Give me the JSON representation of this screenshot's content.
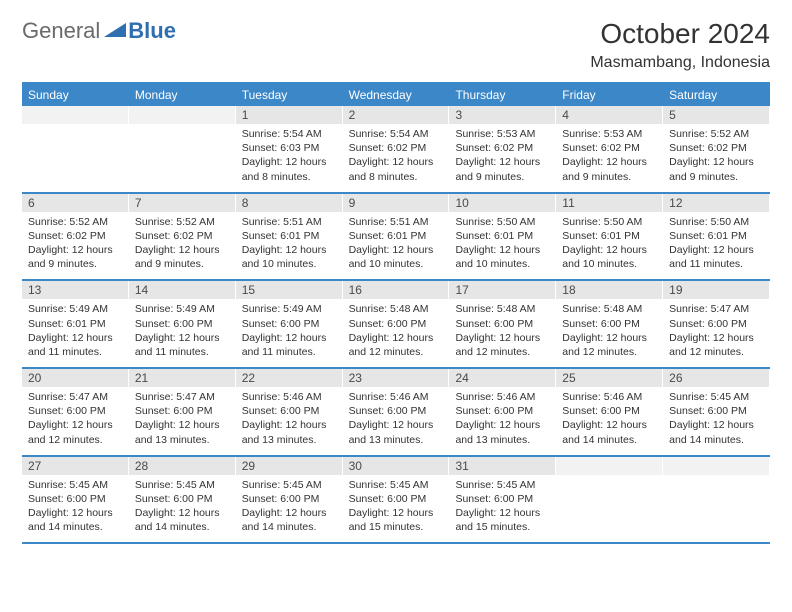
{
  "colors": {
    "header": "#3b87c8",
    "num_bg": "#e6e6e6",
    "text": "#333333"
  },
  "logo": {
    "part1": "General",
    "part2": "Blue"
  },
  "title": "October 2024",
  "location": "Masmambang, Indonesia",
  "weekdays": [
    "Sunday",
    "Monday",
    "Tuesday",
    "Wednesday",
    "Thursday",
    "Friday",
    "Saturday"
  ],
  "font": {
    "title_size": 28,
    "location_size": 16,
    "header_size": 12,
    "num_size": 12,
    "body_size": 10.5
  },
  "weeks": [
    {
      "nums": [
        "",
        "",
        "1",
        "2",
        "3",
        "4",
        "5"
      ],
      "days": [
        null,
        null,
        {
          "sunrise": "5:54 AM",
          "sunset": "6:03 PM",
          "daylight": "12 hours and 8 minutes."
        },
        {
          "sunrise": "5:54 AM",
          "sunset": "6:02 PM",
          "daylight": "12 hours and 8 minutes."
        },
        {
          "sunrise": "5:53 AM",
          "sunset": "6:02 PM",
          "daylight": "12 hours and 9 minutes."
        },
        {
          "sunrise": "5:53 AM",
          "sunset": "6:02 PM",
          "daylight": "12 hours and 9 minutes."
        },
        {
          "sunrise": "5:52 AM",
          "sunset": "6:02 PM",
          "daylight": "12 hours and 9 minutes."
        }
      ]
    },
    {
      "nums": [
        "6",
        "7",
        "8",
        "9",
        "10",
        "11",
        "12"
      ],
      "days": [
        {
          "sunrise": "5:52 AM",
          "sunset": "6:02 PM",
          "daylight": "12 hours and 9 minutes."
        },
        {
          "sunrise": "5:52 AM",
          "sunset": "6:02 PM",
          "daylight": "12 hours and 9 minutes."
        },
        {
          "sunrise": "5:51 AM",
          "sunset": "6:01 PM",
          "daylight": "12 hours and 10 minutes."
        },
        {
          "sunrise": "5:51 AM",
          "sunset": "6:01 PM",
          "daylight": "12 hours and 10 minutes."
        },
        {
          "sunrise": "5:50 AM",
          "sunset": "6:01 PM",
          "daylight": "12 hours and 10 minutes."
        },
        {
          "sunrise": "5:50 AM",
          "sunset": "6:01 PM",
          "daylight": "12 hours and 10 minutes."
        },
        {
          "sunrise": "5:50 AM",
          "sunset": "6:01 PM",
          "daylight": "12 hours and 11 minutes."
        }
      ]
    },
    {
      "nums": [
        "13",
        "14",
        "15",
        "16",
        "17",
        "18",
        "19"
      ],
      "days": [
        {
          "sunrise": "5:49 AM",
          "sunset": "6:01 PM",
          "daylight": "12 hours and 11 minutes."
        },
        {
          "sunrise": "5:49 AM",
          "sunset": "6:00 PM",
          "daylight": "12 hours and 11 minutes."
        },
        {
          "sunrise": "5:49 AM",
          "sunset": "6:00 PM",
          "daylight": "12 hours and 11 minutes."
        },
        {
          "sunrise": "5:48 AM",
          "sunset": "6:00 PM",
          "daylight": "12 hours and 12 minutes."
        },
        {
          "sunrise": "5:48 AM",
          "sunset": "6:00 PM",
          "daylight": "12 hours and 12 minutes."
        },
        {
          "sunrise": "5:48 AM",
          "sunset": "6:00 PM",
          "daylight": "12 hours and 12 minutes."
        },
        {
          "sunrise": "5:47 AM",
          "sunset": "6:00 PM",
          "daylight": "12 hours and 12 minutes."
        }
      ]
    },
    {
      "nums": [
        "20",
        "21",
        "22",
        "23",
        "24",
        "25",
        "26"
      ],
      "days": [
        {
          "sunrise": "5:47 AM",
          "sunset": "6:00 PM",
          "daylight": "12 hours and 12 minutes."
        },
        {
          "sunrise": "5:47 AM",
          "sunset": "6:00 PM",
          "daylight": "12 hours and 13 minutes."
        },
        {
          "sunrise": "5:46 AM",
          "sunset": "6:00 PM",
          "daylight": "12 hours and 13 minutes."
        },
        {
          "sunrise": "5:46 AM",
          "sunset": "6:00 PM",
          "daylight": "12 hours and 13 minutes."
        },
        {
          "sunrise": "5:46 AM",
          "sunset": "6:00 PM",
          "daylight": "12 hours and 13 minutes."
        },
        {
          "sunrise": "5:46 AM",
          "sunset": "6:00 PM",
          "daylight": "12 hours and 14 minutes."
        },
        {
          "sunrise": "5:45 AM",
          "sunset": "6:00 PM",
          "daylight": "12 hours and 14 minutes."
        }
      ]
    },
    {
      "nums": [
        "27",
        "28",
        "29",
        "30",
        "31",
        "",
        ""
      ],
      "days": [
        {
          "sunrise": "5:45 AM",
          "sunset": "6:00 PM",
          "daylight": "12 hours and 14 minutes."
        },
        {
          "sunrise": "5:45 AM",
          "sunset": "6:00 PM",
          "daylight": "12 hours and 14 minutes."
        },
        {
          "sunrise": "5:45 AM",
          "sunset": "6:00 PM",
          "daylight": "12 hours and 14 minutes."
        },
        {
          "sunrise": "5:45 AM",
          "sunset": "6:00 PM",
          "daylight": "12 hours and 15 minutes."
        },
        {
          "sunrise": "5:45 AM",
          "sunset": "6:00 PM",
          "daylight": "12 hours and 15 minutes."
        },
        null,
        null
      ]
    }
  ]
}
